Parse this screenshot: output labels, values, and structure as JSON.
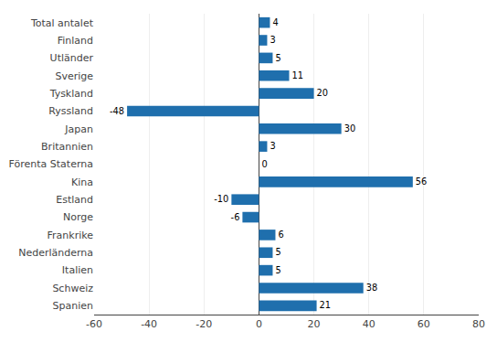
{
  "chart_data": {
    "type": "bar",
    "orientation": "horizontal",
    "categories": [
      "Total antalet",
      "Finland",
      "Utländer",
      "Sverige",
      "Tyskland",
      "Ryssland",
      "Japan",
      "Britannien",
      "Förenta Staterna",
      "Kina",
      "Estland",
      "Norge",
      "Frankrike",
      "Nederländerna",
      "Italien",
      "Schweiz",
      "Spanien"
    ],
    "values": [
      4,
      3,
      5,
      11,
      20,
      -48,
      30,
      3,
      0,
      56,
      -10,
      -6,
      6,
      5,
      5,
      38,
      21
    ],
    "color": "#1f6fad",
    "xlim": [
      -60,
      80
    ],
    "xticks": [
      -60,
      -40,
      -20,
      0,
      20,
      40,
      60,
      80
    ],
    "grid": true,
    "data_labels": true
  }
}
